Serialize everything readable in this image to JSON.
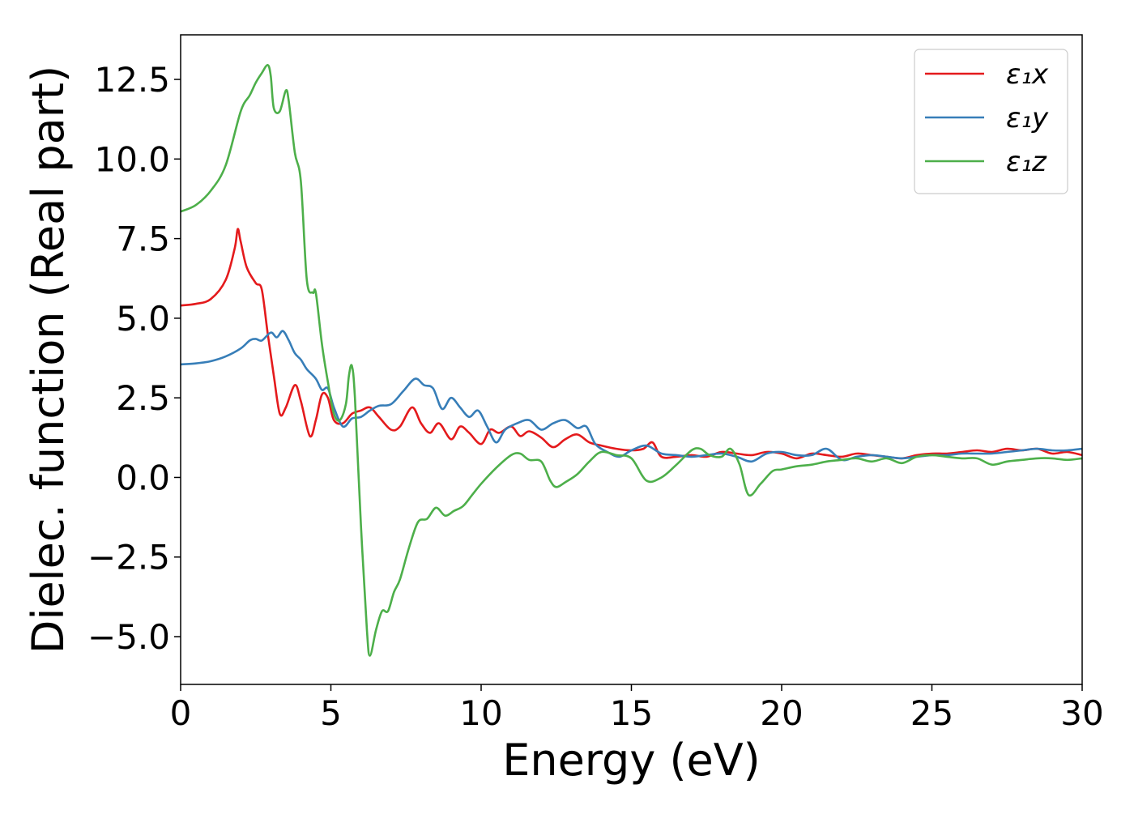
{
  "chart_data": {
    "type": "line",
    "title": "",
    "xlabel": "Energy (eV)",
    "ylabel": "Dielec. function (Real part)",
    "xlim": [
      0,
      30
    ],
    "ylim": [
      -6.5,
      13.9
    ],
    "xticks": [
      0,
      5,
      10,
      15,
      20,
      25,
      30
    ],
    "xtick_labels": [
      "0",
      "5",
      "10",
      "15",
      "20",
      "25",
      "30"
    ],
    "yticks": [
      -5.0,
      -2.5,
      0.0,
      2.5,
      5.0,
      7.5,
      10.0,
      12.5
    ],
    "ytick_labels": [
      "−5.0",
      "−2.5",
      "0.0",
      "2.5",
      "5.0",
      "7.5",
      "10.0",
      "12.5"
    ],
    "grid": false,
    "legend_position": "top-right",
    "series": [
      {
        "name": "ε₁x",
        "color": "#e41a1c",
        "x": [
          0,
          0.5,
          1.0,
          1.5,
          1.8,
          1.9,
          2.0,
          2.2,
          2.5,
          2.7,
          2.9,
          3.1,
          3.3,
          3.5,
          3.8,
          4.0,
          4.3,
          4.5,
          4.7,
          4.9,
          5.1,
          5.4,
          5.7,
          6.0,
          6.3,
          6.6,
          7.0,
          7.3,
          7.7,
          8.0,
          8.3,
          8.6,
          9.0,
          9.3,
          9.6,
          10.0,
          10.3,
          10.6,
          11.0,
          11.3,
          11.6,
          12.0,
          12.4,
          12.8,
          13.2,
          13.6,
          14.0,
          14.5,
          15.0,
          15.4,
          15.7,
          16.0,
          16.5,
          17.0,
          17.5,
          18.0,
          18.5,
          19.0,
          19.5,
          20.0,
          20.5,
          21.0,
          21.5,
          22.0,
          22.5,
          23.0,
          23.5,
          24.0,
          24.5,
          25.0,
          25.5,
          26.0,
          26.5,
          27.0,
          27.5,
          28.0,
          28.5,
          29.0,
          29.5,
          30.0
        ],
        "y": [
          5.4,
          5.45,
          5.6,
          6.2,
          7.2,
          7.8,
          7.4,
          6.6,
          6.1,
          5.9,
          4.5,
          3.2,
          2.0,
          2.2,
          2.9,
          2.4,
          1.3,
          1.8,
          2.6,
          2.5,
          1.8,
          1.7,
          2.0,
          2.1,
          2.2,
          1.9,
          1.5,
          1.6,
          2.2,
          1.7,
          1.4,
          1.7,
          1.2,
          1.6,
          1.4,
          1.05,
          1.5,
          1.4,
          1.6,
          1.3,
          1.45,
          1.25,
          0.95,
          1.2,
          1.35,
          1.1,
          1.0,
          0.9,
          0.85,
          0.9,
          1.1,
          0.65,
          0.65,
          0.7,
          0.65,
          0.8,
          0.75,
          0.7,
          0.8,
          0.75,
          0.6,
          0.75,
          0.7,
          0.65,
          0.75,
          0.7,
          0.65,
          0.6,
          0.7,
          0.75,
          0.75,
          0.8,
          0.85,
          0.8,
          0.9,
          0.85,
          0.9,
          0.75,
          0.8,
          0.7
        ]
      },
      {
        "name": "ε₁y",
        "color": "#377eb8",
        "x": [
          0,
          0.5,
          1.0,
          1.5,
          2.0,
          2.3,
          2.5,
          2.7,
          3.0,
          3.2,
          3.4,
          3.6,
          3.8,
          4.0,
          4.2,
          4.5,
          4.7,
          4.9,
          5.1,
          5.4,
          5.7,
          6.0,
          6.3,
          6.6,
          7.0,
          7.4,
          7.8,
          8.1,
          8.4,
          8.7,
          9.0,
          9.3,
          9.6,
          9.9,
          10.2,
          10.5,
          10.8,
          11.2,
          11.6,
          12.0,
          12.4,
          12.8,
          13.2,
          13.5,
          13.8,
          14.2,
          14.6,
          15.0,
          15.5,
          16.0,
          16.5,
          17.0,
          17.5,
          18.0,
          18.5,
          19.0,
          19.5,
          20.0,
          20.5,
          21.0,
          21.5,
          22.0,
          22.5,
          23.0,
          23.5,
          24.0,
          24.5,
          25.0,
          25.5,
          26.0,
          26.5,
          27.0,
          27.5,
          28.0,
          28.5,
          29.0,
          29.5,
          30.0
        ],
        "y": [
          3.55,
          3.58,
          3.65,
          3.8,
          4.05,
          4.3,
          4.35,
          4.3,
          4.55,
          4.4,
          4.6,
          4.3,
          3.9,
          3.7,
          3.4,
          3.1,
          2.75,
          2.8,
          2.2,
          1.6,
          1.85,
          1.9,
          2.1,
          2.25,
          2.3,
          2.7,
          3.1,
          2.9,
          2.8,
          2.15,
          2.5,
          2.2,
          1.9,
          2.1,
          1.6,
          1.1,
          1.5,
          1.7,
          1.8,
          1.5,
          1.7,
          1.8,
          1.55,
          1.6,
          1.05,
          0.8,
          0.65,
          0.85,
          1.0,
          0.75,
          0.7,
          0.65,
          0.7,
          0.75,
          0.65,
          0.5,
          0.75,
          0.8,
          0.7,
          0.7,
          0.9,
          0.55,
          0.65,
          0.7,
          0.65,
          0.6,
          0.65,
          0.7,
          0.7,
          0.75,
          0.75,
          0.75,
          0.8,
          0.85,
          0.9,
          0.85,
          0.85,
          0.9
        ]
      },
      {
        "name": "ε₁z",
        "color": "#4daf4a",
        "x": [
          0,
          0.5,
          1.0,
          1.5,
          2.0,
          2.3,
          2.5,
          2.7,
          2.9,
          3.0,
          3.1,
          3.3,
          3.5,
          3.6,
          3.8,
          4.0,
          4.2,
          4.4,
          4.5,
          4.7,
          4.9,
          5.1,
          5.3,
          5.5,
          5.6,
          5.7,
          5.8,
          6.0,
          6.2,
          6.3,
          6.5,
          6.7,
          6.9,
          7.1,
          7.3,
          7.6,
          7.9,
          8.2,
          8.5,
          8.8,
          9.1,
          9.4,
          9.7,
          10.0,
          10.5,
          11.0,
          11.3,
          11.6,
          12.0,
          12.3,
          12.5,
          12.8,
          13.2,
          13.6,
          14.0,
          14.5,
          15.0,
          15.5,
          16.0,
          16.5,
          17.0,
          17.3,
          17.6,
          18.0,
          18.3,
          18.6,
          18.9,
          19.3,
          19.7,
          20.0,
          20.5,
          21.0,
          21.5,
          22.0,
          22.5,
          23.0,
          23.5,
          24.0,
          24.5,
          25.0,
          25.5,
          26.0,
          26.5,
          27.0,
          27.5,
          28.0,
          28.5,
          29.0,
          29.5,
          30.0
        ],
        "y": [
          8.35,
          8.55,
          9.0,
          9.8,
          11.5,
          12.0,
          12.4,
          12.7,
          12.95,
          12.6,
          11.6,
          11.5,
          12.15,
          11.8,
          10.2,
          9.3,
          6.2,
          5.8,
          5.8,
          4.2,
          3.0,
          2.0,
          1.8,
          2.3,
          3.2,
          3.5,
          2.5,
          -1.5,
          -4.8,
          -5.6,
          -4.8,
          -4.2,
          -4.2,
          -3.6,
          -3.2,
          -2.2,
          -1.4,
          -1.3,
          -0.95,
          -1.2,
          -1.05,
          -0.9,
          -0.55,
          -0.2,
          0.3,
          0.7,
          0.75,
          0.55,
          0.5,
          -0.1,
          -0.3,
          -0.15,
          0.1,
          0.5,
          0.8,
          0.7,
          0.6,
          -0.1,
          0.0,
          0.4,
          0.85,
          0.9,
          0.7,
          0.65,
          0.9,
          0.4,
          -0.55,
          -0.2,
          0.2,
          0.25,
          0.35,
          0.4,
          0.5,
          0.55,
          0.6,
          0.5,
          0.6,
          0.45,
          0.65,
          0.7,
          0.65,
          0.6,
          0.6,
          0.4,
          0.5,
          0.55,
          0.6,
          0.6,
          0.55,
          0.6
        ]
      }
    ]
  }
}
